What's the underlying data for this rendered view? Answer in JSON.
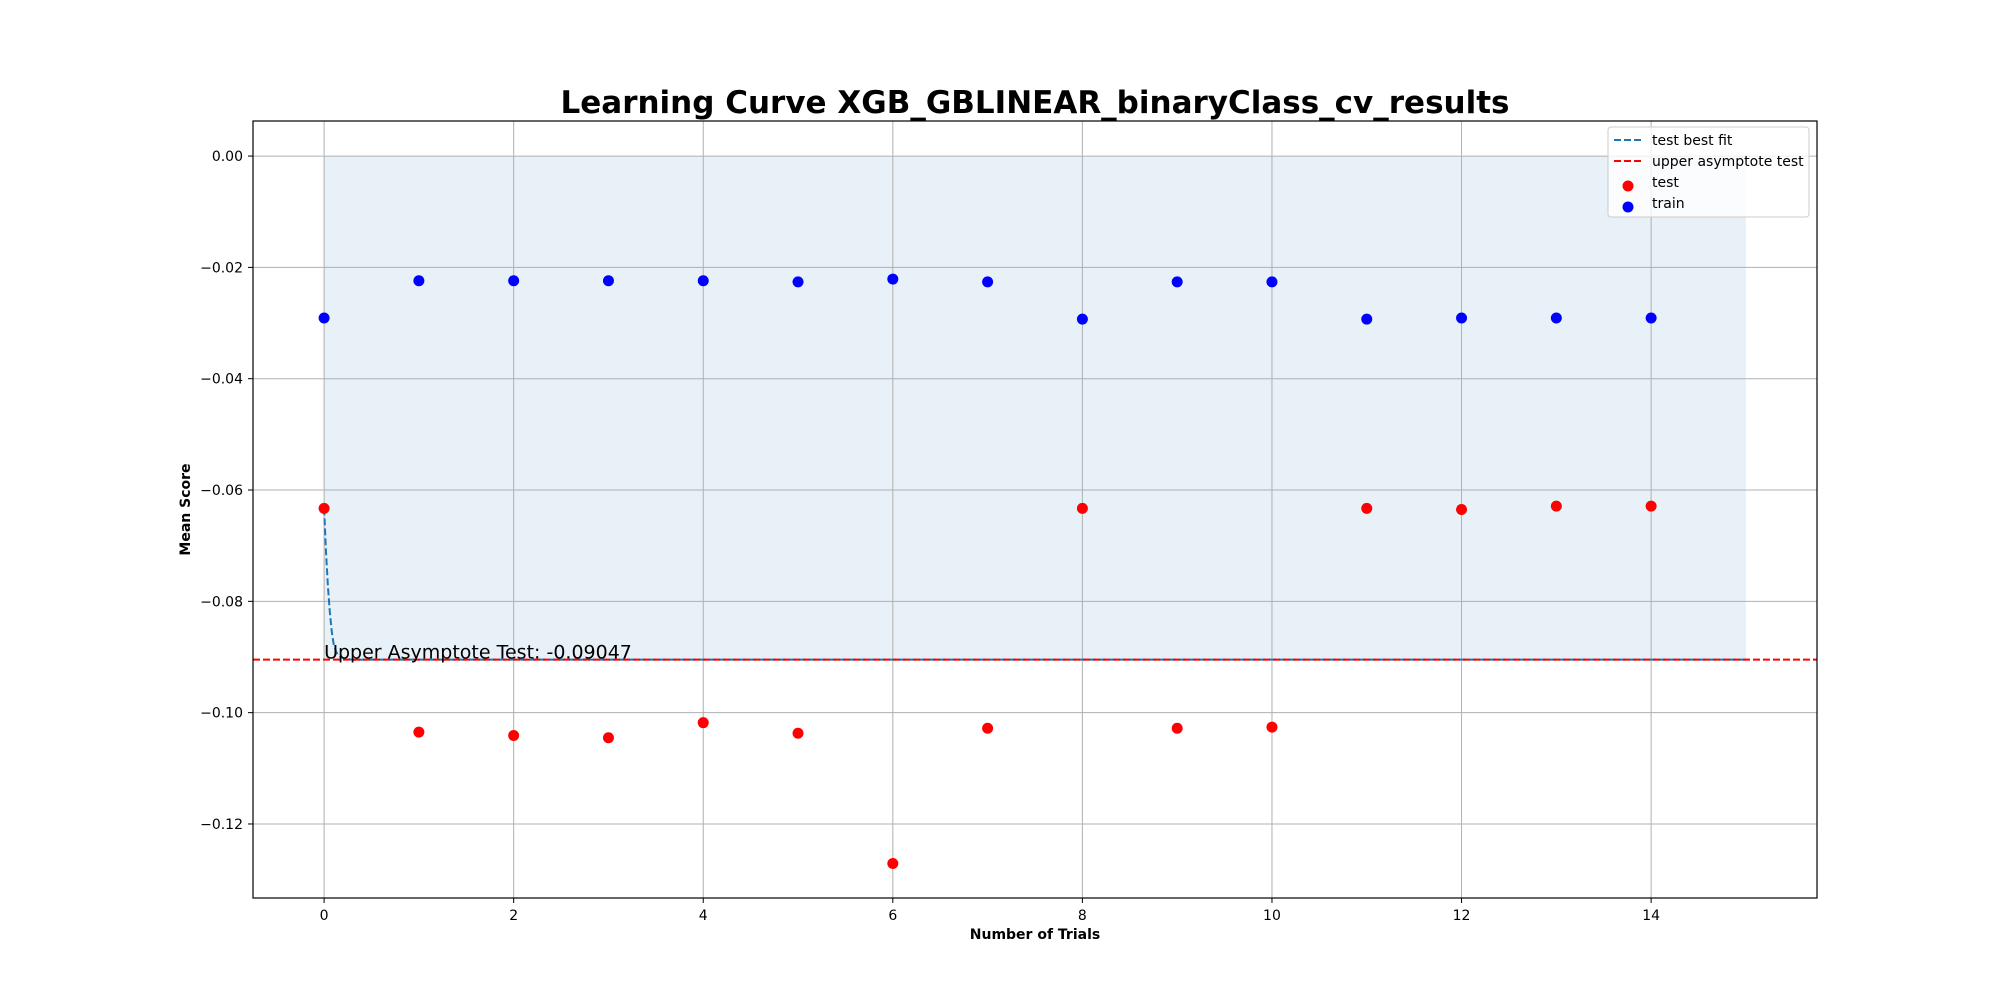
{
  "chart_data": {
    "type": "scatter",
    "title": "Learning Curve XGB_GBLINEAR_binaryClass_cv_results",
    "xlabel": "Number of Trials",
    "ylabel": "Mean Score",
    "xlim": [
      -0.75,
      15.75
    ],
    "ylim": [
      -0.1333,
      0.0063
    ],
    "x_ticks": [
      0,
      2,
      4,
      6,
      8,
      10,
      12,
      14
    ],
    "y_ticks": [
      0.0,
      -0.02,
      -0.04,
      -0.06,
      -0.08,
      -0.1,
      -0.12
    ],
    "x_tick_labels": [
      "0",
      "2",
      "4",
      "6",
      "8",
      "10",
      "12",
      "14"
    ],
    "y_tick_labels": [
      "0.00",
      "−0.02",
      "−0.04",
      "−0.06",
      "−0.08",
      "−0.10",
      "−0.12"
    ],
    "grid": true,
    "legend_position": "top-right",
    "series": [
      {
        "name": "train",
        "kind": "scatter",
        "color": "#0000ff",
        "x": [
          0,
          1,
          2,
          3,
          4,
          5,
          6,
          7,
          8,
          9,
          10,
          11,
          12,
          13,
          14
        ],
        "y": [
          -0.0291,
          -0.0224,
          -0.0224,
          -0.0224,
          -0.0224,
          -0.0226,
          -0.0221,
          -0.0226,
          -0.0293,
          -0.0226,
          -0.0226,
          -0.0293,
          -0.0291,
          -0.0291,
          -0.0291
        ]
      },
      {
        "name": "test",
        "kind": "scatter",
        "color": "#ff0000",
        "x": [
          0,
          1,
          2,
          3,
          4,
          5,
          6,
          7,
          8,
          9,
          10,
          11,
          12,
          13,
          14
        ],
        "y": [
          -0.0633,
          -0.1035,
          -0.1041,
          -0.1045,
          -0.1018,
          -0.1037,
          -0.1271,
          -0.1028,
          -0.0633,
          -0.1028,
          -0.1026,
          -0.0633,
          -0.0635,
          -0.0629,
          -0.0629
        ]
      },
      {
        "name": "test best fit",
        "kind": "line",
        "style": "dashed",
        "color": "#1f77b4",
        "x": [
          0,
          0.02,
          0.04,
          0.06,
          0.08,
          0.1,
          0.13,
          0.17,
          0.22,
          0.3,
          0.5,
          1,
          15
        ],
        "y": [
          -0.0633,
          -0.0711,
          -0.0772,
          -0.0818,
          -0.0853,
          -0.0876,
          -0.0892,
          -0.09,
          -0.0903,
          -0.0905,
          -0.09047,
          -0.09047,
          -0.09047
        ]
      },
      {
        "name": "upper asymptote test",
        "kind": "hline",
        "style": "dashed",
        "color": "#ff0000",
        "y": -0.09047
      }
    ],
    "shaded_region": {
      "x": [
        0,
        15
      ],
      "y": [
        -0.09047,
        0.0
      ],
      "color": "#1f77b4",
      "opacity": 0.1
    },
    "annotation": {
      "text": "Upper Asymptote Test: -0.09047",
      "x": 0,
      "y": -0.09047
    }
  }
}
